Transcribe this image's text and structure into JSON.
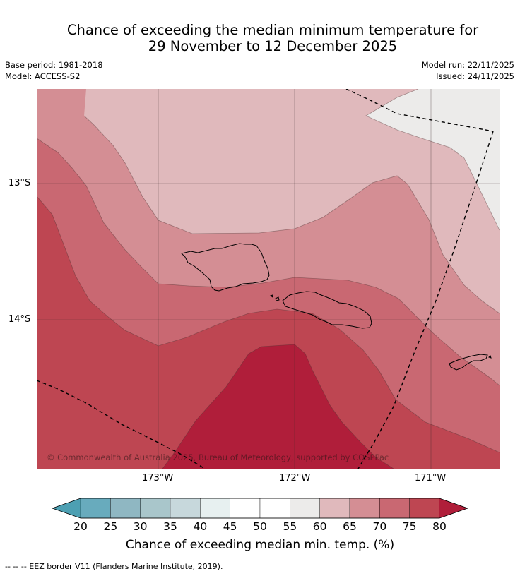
{
  "title": {
    "line1": "Chance of exceeding the median minimum temperature for",
    "line2": "29 November to 12 December 2025"
  },
  "meta": {
    "base_period": "Base period: 1981-2018",
    "model": "Model: ACCESS-S2",
    "model_run": "Model run: 22/11/2025",
    "issued": "Issued: 24/11/2025"
  },
  "map": {
    "region": "Samoa",
    "copyright": "© Commonwealth of Australia 2025, Bureau of Meteorology, supported by COSPPac",
    "lat_labels": [
      "13°S",
      "14°S"
    ],
    "lon_labels": [
      "173°W",
      "172°W",
      "171°W"
    ],
    "layers": [
      {
        "name": "75-80",
        "color": "#be4652"
      },
      {
        "name": "70-75",
        "color": "#c96872"
      },
      {
        "name": "65-70",
        "color": "#d48e94"
      },
      {
        "name": "60-65",
        "color": "#e0b9bc"
      },
      {
        "name": "55-60",
        "color": "#ecebea"
      },
      {
        "name": "80+",
        "color": "#b01e3a"
      }
    ]
  },
  "colorbar": {
    "ticks": [
      "20",
      "25",
      "30",
      "35",
      "40",
      "45",
      "50",
      "55",
      "60",
      "65",
      "70",
      "75",
      "80"
    ],
    "colors": [
      "#68abbd",
      "#8fb7c2",
      "#a9c6cb",
      "#c7d8dc",
      "#e7f0f0",
      "#ffffff",
      "#ffffff",
      "#ecebea",
      "#e0b9bc",
      "#d48e94",
      "#c96872",
      "#be4652"
    ],
    "under_color": "#4da0b3",
    "over_color": "#b01e3a",
    "label": "Chance of exceeding median min. temp. (%)"
  },
  "footer": {
    "eez_note": "--  --  -- EEZ border V11 (Flanders Marine Institute, 2019)."
  }
}
